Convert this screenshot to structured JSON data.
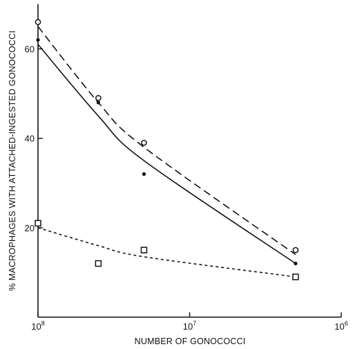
{
  "chart_data": {
    "type": "scatter",
    "title": "",
    "xlabel": "NUMBER OF GONOCOCCI",
    "ylabel": "% MACROPHAGES WITH ATTACHED-INGESTED GONOCOCCI",
    "x_scale": "log, reversed",
    "xlim": [
      100000000,
      1000000
    ],
    "ylim": [
      0,
      70
    ],
    "grid": false,
    "x_ticks": [
      {
        "value": 100000000,
        "base": "10",
        "exp": "8"
      },
      {
        "value": 10000000,
        "base": "10",
        "exp": "7"
      },
      {
        "value": 1000000,
        "base": "10",
        "exp": "6"
      }
    ],
    "y_ticks": [
      {
        "value": 20,
        "label": "20"
      },
      {
        "value": 40,
        "label": "40"
      },
      {
        "value": 60,
        "label": "60"
      }
    ],
    "series": [
      {
        "marker": "open-circle",
        "fit_line": "long-dash",
        "points": [
          {
            "x": 100000000,
            "y": 66
          },
          {
            "x": 40000000,
            "y": 49
          },
          {
            "x": 20000000,
            "y": 39
          },
          {
            "x": 2000000,
            "y": 15
          }
        ],
        "curve": [
          {
            "x": 100000000,
            "y": 65
          },
          {
            "x": 40000000,
            "y": 48
          },
          {
            "x": 20000000,
            "y": 38
          },
          {
            "x": 2000000,
            "y": 14
          }
        ]
      },
      {
        "marker": "filled-dot",
        "fit_line": "solid",
        "points": [
          {
            "x": 100000000,
            "y": 62
          },
          {
            "x": 40000000,
            "y": 48
          },
          {
            "x": 20000000,
            "y": 32
          },
          {
            "x": 2000000,
            "y": 12
          }
        ],
        "curve": [
          {
            "x": 100000000,
            "y": 61
          },
          {
            "x": 40000000,
            "y": 45
          },
          {
            "x": 20000000,
            "y": 35
          },
          {
            "x": 2000000,
            "y": 12
          }
        ]
      },
      {
        "marker": "open-square",
        "fit_line": "short-dash",
        "points": [
          {
            "x": 100000000,
            "y": 21
          },
          {
            "x": 40000000,
            "y": 12
          },
          {
            "x": 20000000,
            "y": 15
          },
          {
            "x": 2000000,
            "y": 9
          }
        ],
        "curve": [
          {
            "x": 100000000,
            "y": 20
          },
          {
            "x": 40000000,
            "y": 16
          },
          {
            "x": 20000000,
            "y": 13.5
          },
          {
            "x": 2000000,
            "y": 9
          }
        ]
      }
    ]
  }
}
